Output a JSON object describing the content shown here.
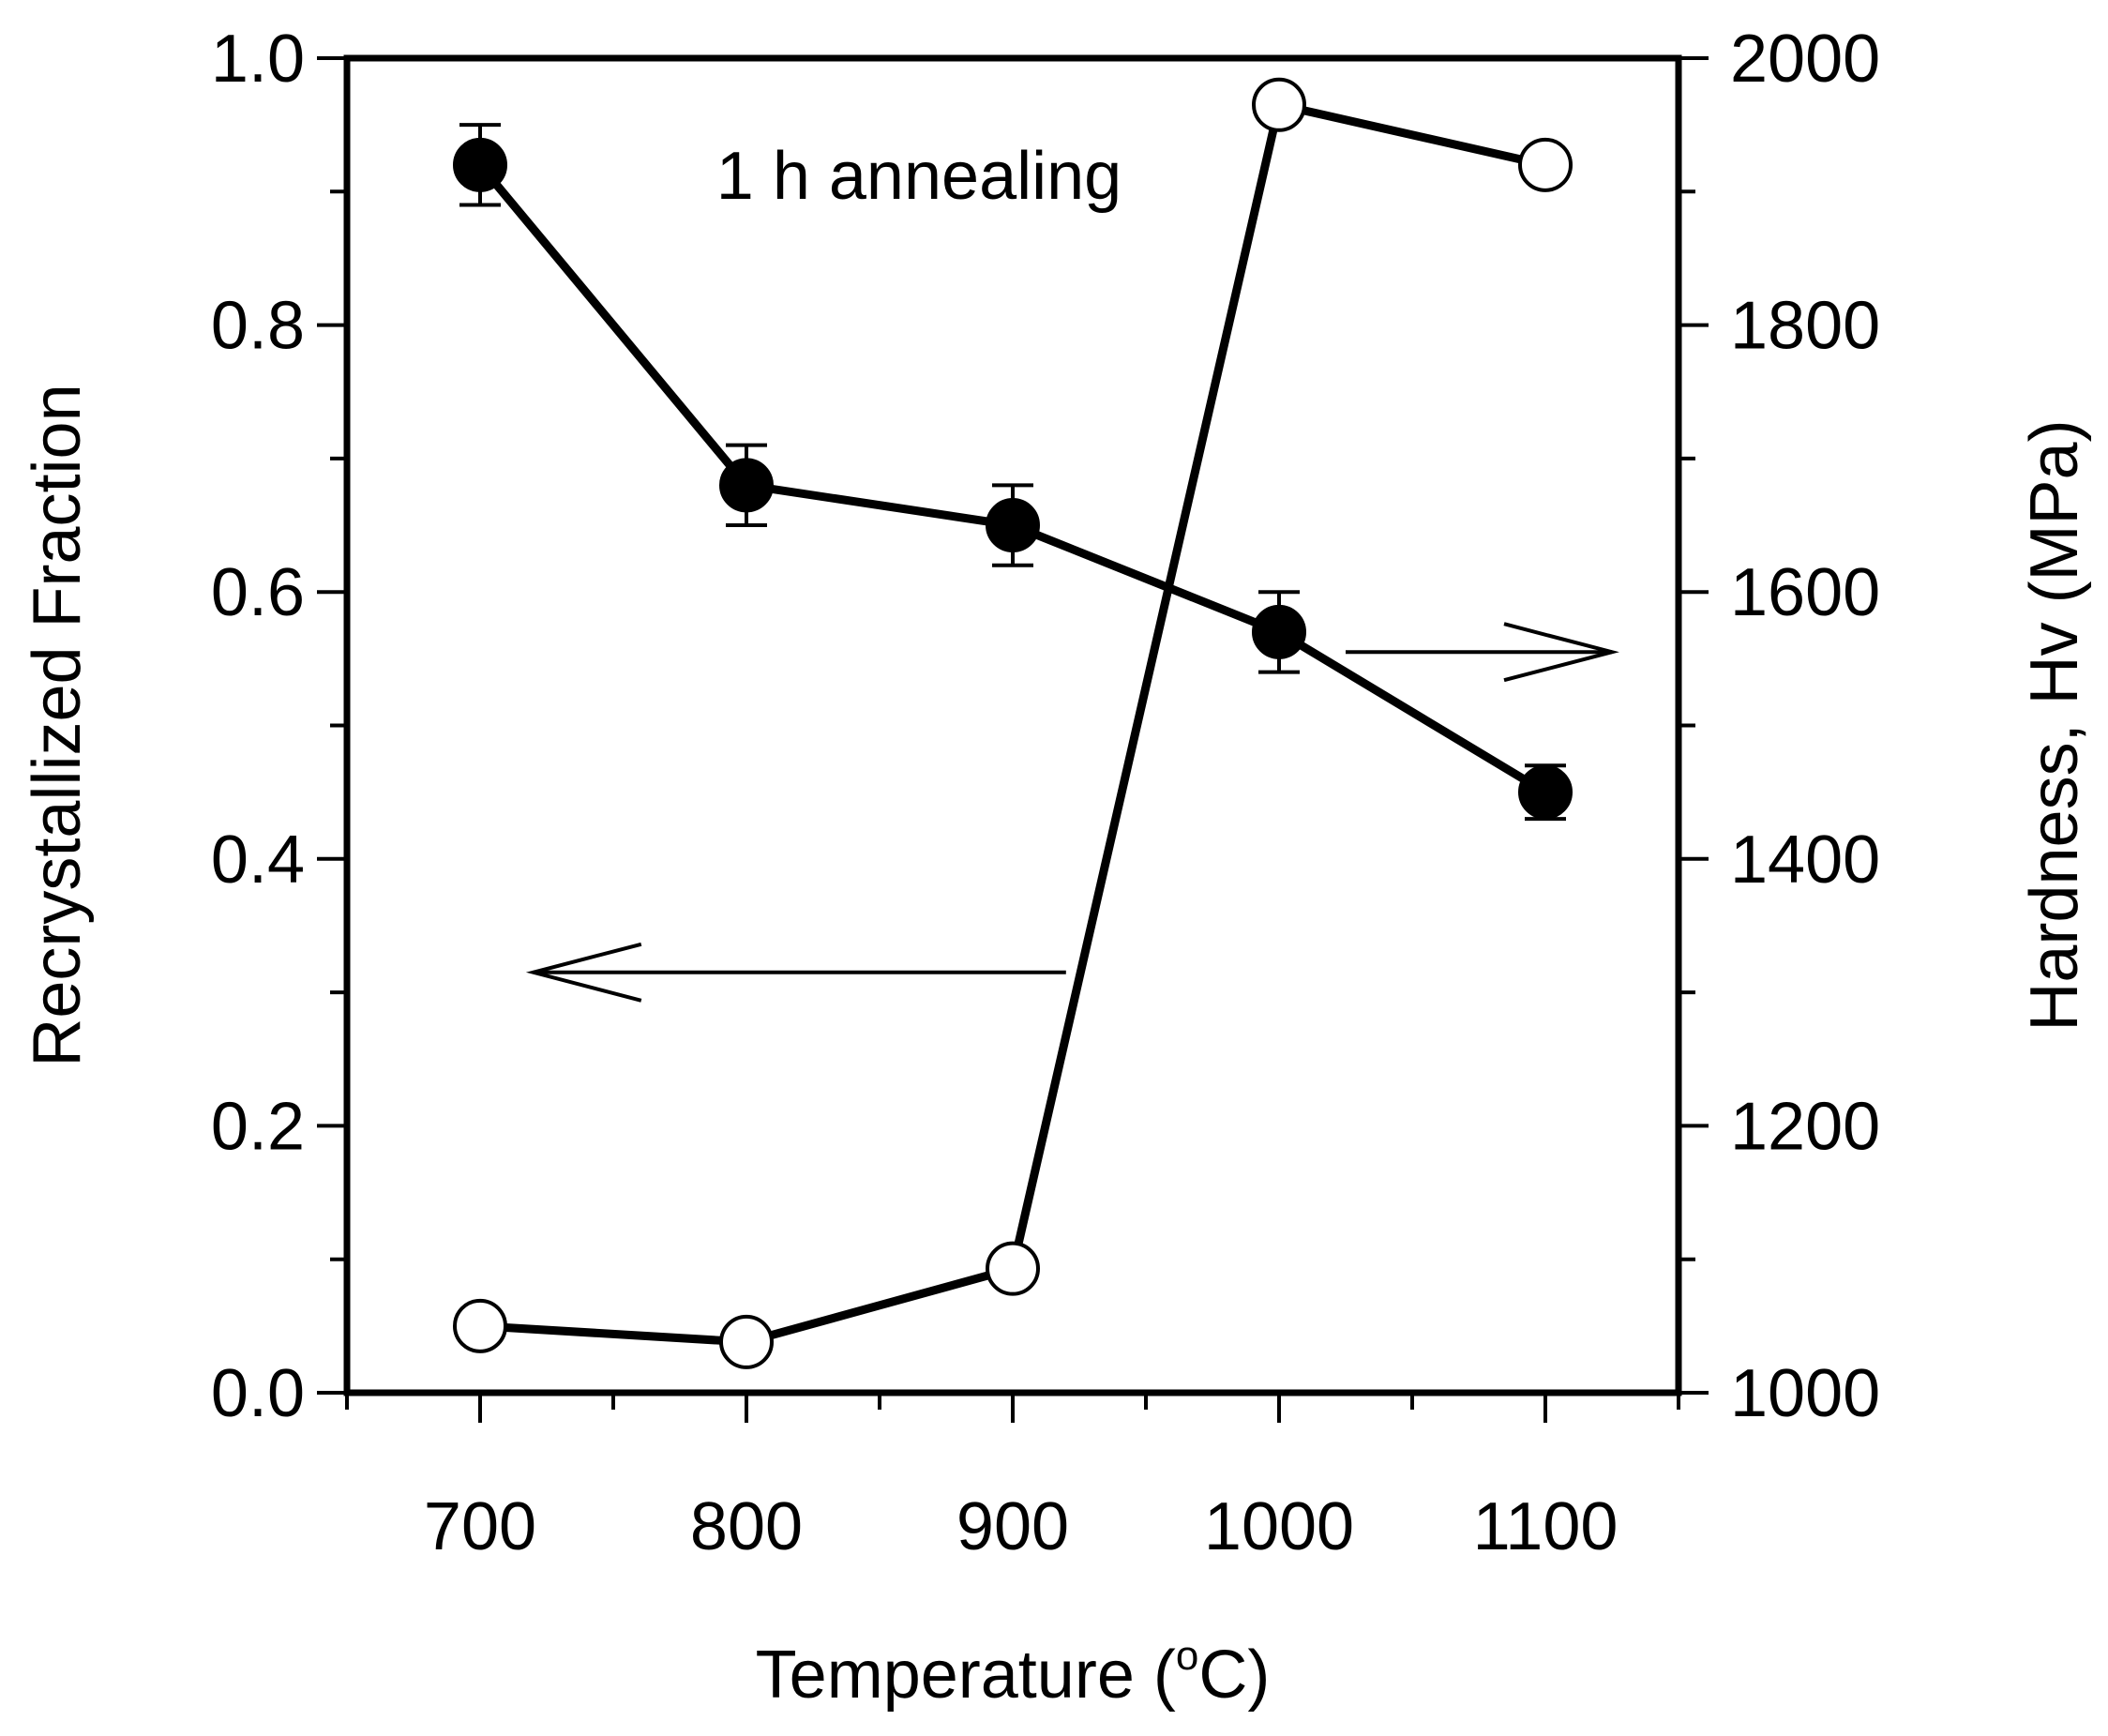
{
  "chart_data": {
    "type": "line",
    "title": "",
    "annotation": "1 h annealing",
    "xlabel_prefix": "Temperature (",
    "xlabel_degree": "o",
    "xlabel_suffix": "C)",
    "xlim": [
      650,
      1150
    ],
    "x_ticks": [
      700,
      800,
      900,
      1000,
      1100
    ],
    "x_tick_labels": [
      "700",
      "800",
      "900",
      "1000",
      "1100"
    ],
    "y_left": {
      "label": "Recrystallized Fraction",
      "lim": [
        0,
        1
      ],
      "ticks": [
        0,
        0.2,
        0.4,
        0.6,
        0.8,
        1.0
      ],
      "tick_labels": [
        "0.0",
        "0.2",
        "0.4",
        "0.6",
        "0.8",
        "1.0"
      ]
    },
    "y_right": {
      "label": "Hardness, Hv (MPa)",
      "lim": [
        1000,
        2000
      ],
      "ticks": [
        1000,
        1200,
        1400,
        1600,
        1800,
        2000
      ],
      "tick_labels": [
        "1000",
        "1200",
        "1400",
        "1600",
        "1800",
        "2000"
      ]
    },
    "series": [
      {
        "name": "Recrystallized Fraction",
        "axis": "left",
        "marker": "open-circle",
        "x": [
          700,
          800,
          900,
          1000,
          1100
        ],
        "values": [
          0.05,
          0.038,
          0.093,
          0.965,
          0.92
        ]
      },
      {
        "name": "Hardness",
        "axis": "right",
        "marker": "filled-circle",
        "x": [
          700,
          800,
          900,
          1000,
          1100
        ],
        "values": [
          1920,
          1680,
          1650,
          1570,
          1450
        ],
        "error": [
          30,
          30,
          30,
          30,
          20
        ]
      }
    ],
    "arrows": [
      {
        "points_to": "left-axis",
        "x_from": 920,
        "x_to": 720,
        "y_left": 0.315
      },
      {
        "points_to": "right-axis",
        "x_from": 1025,
        "x_to": 1125,
        "y_right": 1555
      }
    ],
    "grid": false,
    "legend": "none"
  }
}
